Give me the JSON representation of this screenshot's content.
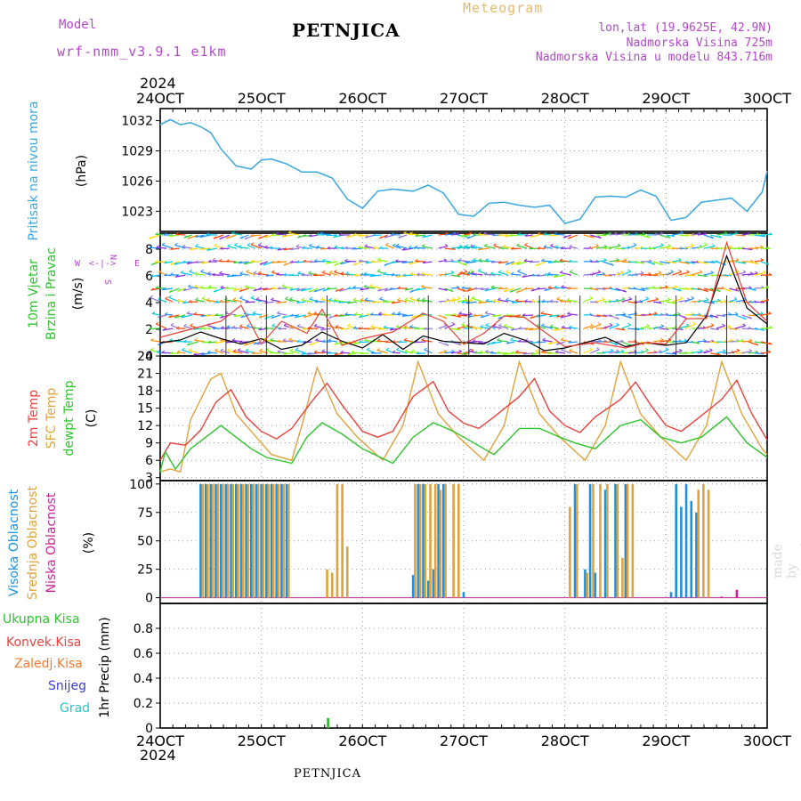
{
  "header": {
    "model_label": "Model",
    "run_label": "wrf-nmm_v3.9.1  e1km",
    "title": "PETNJICA",
    "meteogram_label": "Meteogram",
    "lonlat": "lon,lat (19.9625E, 42.9N)",
    "elevation": "Nadmorska Visina 725m",
    "model_elevation": "Nadmorska Visina u modelu 843.716m"
  },
  "footer": {
    "station": "PETNJICA",
    "credit": "made by Angel"
  },
  "time_axis": {
    "year": "2024",
    "ticks": [
      "24OCT",
      "25OCT",
      "26OCT",
      "27OCT",
      "28OCT",
      "29OCT",
      "30OCT"
    ]
  },
  "colors": {
    "pressure": "#3aa6e0",
    "temp2m": "#e8413c",
    "sfc": "#e0a33c",
    "dewpt": "#2cc42c",
    "high_cloud": "#1e90dd",
    "mid_cloud": "#e0a33c",
    "low_cloud": "#cc2299",
    "total_precip": "#2cc42c",
    "conv_precip": "#e8413c",
    "frozen_precip": "#f07b30",
    "snow": "#3b3bd9",
    "hail": "#2ec4c4",
    "wind_axis": "#b148c9"
  },
  "panel_labels": {
    "pressure": [
      "Pritisak na nivou mora",
      "(hPa)"
    ],
    "wind": [
      "10m Vjetar",
      "Brzina i Pravac",
      "(m/s)"
    ],
    "wind_rose": {
      "n": "N",
      "s": "S",
      "w": "W",
      "e": "E",
      "glyph": "<-|->"
    },
    "temp": [
      "2m Temp",
      "SFC Temp",
      "dewpt Temp",
      "(C)"
    ],
    "cloud": [
      "Visoka Oblacnost",
      "Srednja Oblacnost",
      "Niska Oblacnost",
      "(%)"
    ],
    "precip": [
      "Ukupna Kisa",
      "Konvek.Kisa",
      "Zaledj.Kisa",
      "Snijeg",
      "Grad",
      "1hr Precip (mm)"
    ]
  },
  "chart_data": [
    {
      "type": "line",
      "name": "pressure",
      "ylabel": "(hPa)",
      "ylim": [
        1021,
        1033.2
      ],
      "yticks": [
        "1023",
        "1026",
        "1029",
        "1032"
      ],
      "x_units": "days since 24OCT 00UTC",
      "series": [
        {
          "name": "Pritisak na nivou mora",
          "x": [
            0,
            0.1,
            0.2,
            0.3,
            0.4,
            0.5,
            0.6,
            0.75,
            0.9,
            1.0,
            1.1,
            1.25,
            1.4,
            1.55,
            1.7,
            1.85,
            2.0,
            2.15,
            2.3,
            2.5,
            2.65,
            2.8,
            2.95,
            3.1,
            3.25,
            3.4,
            3.55,
            3.7,
            3.85,
            4.0,
            4.15,
            4.3,
            4.45,
            4.6,
            4.75,
            4.9,
            5.05,
            5.2,
            5.35,
            5.5,
            5.65,
            5.8,
            5.95,
            6.0
          ],
          "y": [
            1031.6,
            1032.1,
            1031.6,
            1031.8,
            1031.4,
            1030.8,
            1029.2,
            1027.5,
            1027.2,
            1028.1,
            1028.2,
            1027.7,
            1026.9,
            1026.9,
            1026.3,
            1024.2,
            1023.3,
            1025.0,
            1025.2,
            1025.0,
            1025.6,
            1024.8,
            1022.7,
            1022.5,
            1023.8,
            1023.9,
            1023.6,
            1023.4,
            1023.6,
            1021.8,
            1022.2,
            1024.4,
            1024.5,
            1024.4,
            1025.1,
            1024.5,
            1022.1,
            1022.4,
            1023.9,
            1024.1,
            1024.3,
            1023.0,
            1024.9,
            1027.0
          ]
        }
      ]
    },
    {
      "type": "line",
      "name": "wind",
      "ylabel": "(m/s)",
      "ylim": [
        0,
        9.2
      ],
      "yticks": [
        "0",
        "2",
        "4",
        "6",
        "8"
      ],
      "series": [
        {
          "name": "brzina",
          "x": [
            0,
            0.2,
            0.4,
            0.6,
            0.8,
            1.0,
            1.2,
            1.4,
            1.6,
            1.8,
            2.0,
            2.2,
            2.4,
            2.6,
            2.8,
            3.0,
            3.2,
            3.4,
            3.6,
            3.8,
            4.0,
            4.2,
            4.4,
            4.6,
            4.8,
            5.0,
            5.2,
            5.4,
            5.6,
            5.8,
            6.0
          ],
          "y": [
            1.0,
            1.2,
            1.8,
            1.3,
            0.9,
            1.3,
            0.5,
            0.8,
            1.8,
            1.1,
            0.6,
            1.6,
            0.5,
            1.5,
            1.1,
            1.0,
            0.9,
            1.7,
            1.2,
            0.4,
            0.6,
            1.0,
            1.4,
            0.7,
            1.0,
            0.8,
            1.0,
            3.0,
            7.5,
            3.6,
            2.4
          ]
        },
        {
          "name": "udari",
          "x": [
            0,
            0.3,
            0.6,
            0.8,
            1.0,
            1.2,
            1.45,
            1.6,
            1.8,
            2.0,
            2.3,
            2.6,
            2.8,
            3.0,
            3.2,
            3.4,
            3.6,
            4.0,
            4.3,
            4.6,
            4.8,
            5.0,
            5.2,
            5.4,
            5.6,
            5.8,
            6.0
          ],
          "y": [
            1.4,
            2.0,
            2.6,
            3.8,
            0.9,
            2.6,
            1.7,
            3.5,
            0.8,
            1.3,
            1.8,
            3.2,
            2.6,
            0.9,
            1.7,
            3.0,
            2.9,
            0.7,
            1.0,
            0.6,
            1.0,
            0.9,
            2.8,
            2.8,
            8.5,
            4.0,
            2.6
          ]
        }
      ]
    },
    {
      "type": "line",
      "name": "temperature",
      "ylabel": "(C)",
      "ylim": [
        2.5,
        24
      ],
      "yticks": [
        "3",
        "6",
        "9",
        "12",
        "15",
        "18",
        "21",
        "24"
      ],
      "series": [
        {
          "name": "2m Temp",
          "x": [
            0,
            0.1,
            0.25,
            0.4,
            0.55,
            0.7,
            0.85,
            1.0,
            1.15,
            1.3,
            1.5,
            1.65,
            1.8,
            2.0,
            2.15,
            2.3,
            2.5,
            2.7,
            2.85,
            3.0,
            3.15,
            3.3,
            3.55,
            3.7,
            3.85,
            4.0,
            4.15,
            4.3,
            4.55,
            4.7,
            4.85,
            5.0,
            5.15,
            5.3,
            5.55,
            5.7,
            5.85,
            6.0
          ],
          "y": [
            6.0,
            9.0,
            8.6,
            11.2,
            16.0,
            18.2,
            13.5,
            11.0,
            9.7,
            11.5,
            16.2,
            19.3,
            15.5,
            11.0,
            10.0,
            11.0,
            17.0,
            19.6,
            14.5,
            12.4,
            11.5,
            13.5,
            17.0,
            20.1,
            14.5,
            12.0,
            10.8,
            13.5,
            16.5,
            19.5,
            15.5,
            12.0,
            11.0,
            13.0,
            16.5,
            19.8,
            14.0,
            9.5
          ]
        },
        {
          "name": "SFC Temp",
          "x": [
            0,
            0.1,
            0.2,
            0.3,
            0.5,
            0.6,
            0.75,
            0.9,
            1.1,
            1.3,
            1.4,
            1.55,
            1.75,
            1.95,
            2.2,
            2.4,
            2.55,
            2.75,
            2.95,
            3.2,
            3.4,
            3.55,
            3.75,
            3.95,
            4.2,
            4.4,
            4.55,
            4.75,
            4.95,
            5.2,
            5.4,
            5.55,
            5.75,
            5.95,
            6.0
          ],
          "y": [
            4.0,
            4.5,
            4.0,
            13.0,
            20.0,
            21.0,
            14.0,
            11.0,
            7.0,
            6.0,
            12.0,
            22.0,
            14.0,
            10.0,
            6.0,
            12.0,
            23.0,
            14.0,
            10.0,
            6.0,
            12.0,
            23.0,
            14.0,
            10.0,
            6.0,
            12.0,
            23.0,
            14.0,
            10.0,
            6.0,
            12.0,
            23.0,
            14.0,
            8.0,
            7.0
          ]
        },
        {
          "name": "dewpt Temp",
          "x": [
            0,
            0.05,
            0.15,
            0.3,
            0.45,
            0.6,
            0.75,
            0.9,
            1.05,
            1.3,
            1.45,
            1.6,
            1.8,
            2.0,
            2.3,
            2.5,
            2.7,
            2.9,
            3.1,
            3.3,
            3.55,
            3.75,
            3.95,
            4.1,
            4.3,
            4.55,
            4.75,
            4.95,
            5.15,
            5.35,
            5.6,
            5.8,
            6.0
          ],
          "y": [
            4.0,
            7.5,
            4.5,
            8.0,
            10.0,
            12.0,
            10.0,
            8.0,
            6.5,
            5.5,
            10.0,
            12.5,
            10.5,
            8.0,
            5.5,
            10.0,
            12.5,
            11.0,
            9.0,
            7.0,
            11.5,
            11.5,
            10.0,
            9.0,
            8.0,
            12.0,
            13.0,
            10.0,
            9.0,
            10.0,
            13.5,
            9.0,
            6.5
          ]
        }
      ]
    },
    {
      "type": "bar",
      "name": "cloud",
      "ylabel": "(%)",
      "ylim": [
        -5,
        103
      ],
      "yticks": [
        "0",
        "25",
        "50",
        "75",
        "100"
      ],
      "series": [
        {
          "name": "Visoka Oblacnost",
          "x": [
            0.4,
            0.45,
            0.5,
            0.55,
            0.6,
            0.65,
            0.7,
            0.75,
            0.8,
            0.85,
            0.9,
            0.95,
            1.0,
            1.05,
            1.1,
            1.15,
            1.2,
            1.25,
            2.5,
            2.55,
            2.6,
            2.65,
            2.7,
            2.75,
            2.8,
            3.0,
            4.1,
            4.2,
            4.25,
            4.3,
            4.4,
            4.5,
            4.6,
            4.65,
            4.7,
            4.75,
            5.05,
            5.1,
            5.15,
            5.2,
            5.25,
            5.3,
            5.35,
            5.4
          ],
          "y": [
            100,
            100,
            100,
            100,
            100,
            100,
            100,
            100,
            100,
            100,
            100,
            100,
            100,
            100,
            100,
            100,
            100,
            100,
            20,
            100,
            100,
            15,
            25,
            100,
            100,
            5,
            100,
            25,
            100,
            22,
            95,
            100,
            100,
            0,
            0,
            0,
            5,
            100,
            80,
            100,
            85,
            75,
            0,
            0
          ]
        },
        {
          "name": "Srednja Oblacnost",
          "x": [
            0.42,
            0.47,
            0.52,
            0.57,
            0.62,
            0.67,
            0.72,
            0.77,
            0.82,
            0.87,
            0.92,
            0.97,
            1.02,
            1.07,
            1.12,
            1.17,
            1.22,
            1.27,
            1.65,
            1.7,
            1.75,
            1.8,
            1.85,
            2.52,
            2.57,
            2.62,
            2.67,
            2.72,
            2.77,
            2.82,
            2.9,
            2.95,
            4.05,
            4.12,
            4.22,
            4.28,
            4.35,
            4.42,
            4.52,
            4.57,
            4.62,
            4.67,
            5.32,
            5.37,
            5.42
          ],
          "y": [
            100,
            100,
            100,
            100,
            100,
            100,
            100,
            100,
            100,
            100,
            100,
            100,
            100,
            100,
            100,
            100,
            100,
            100,
            25,
            22,
            100,
            100,
            45,
            100,
            100,
            100,
            100,
            100,
            95,
            100,
            100,
            100,
            80,
            100,
            22,
            100,
            100,
            100,
            100,
            35,
            100,
            100,
            95,
            100,
            95
          ]
        },
        {
          "name": "Niska Oblacnost",
          "x": [
            5.55,
            5.7
          ],
          "y": [
            1,
            7
          ]
        }
      ]
    },
    {
      "type": "bar",
      "name": "precipitation",
      "ylabel": "1hr Precip (mm)",
      "ylim": [
        0,
        1.0
      ],
      "yticks": [
        "0",
        "0.2",
        "0.4",
        "0.6",
        "0.8"
      ],
      "series": [
        {
          "name": "Ukupna Kisa",
          "x": [
            1.66
          ],
          "y": [
            0.08
          ]
        },
        {
          "name": "Konvek.Kisa",
          "x": [],
          "y": []
        },
        {
          "name": "Zaledj.Kisa",
          "x": [],
          "y": []
        },
        {
          "name": "Snijeg",
          "x": [],
          "y": []
        },
        {
          "name": "Grad",
          "x": [],
          "y": []
        }
      ]
    }
  ]
}
